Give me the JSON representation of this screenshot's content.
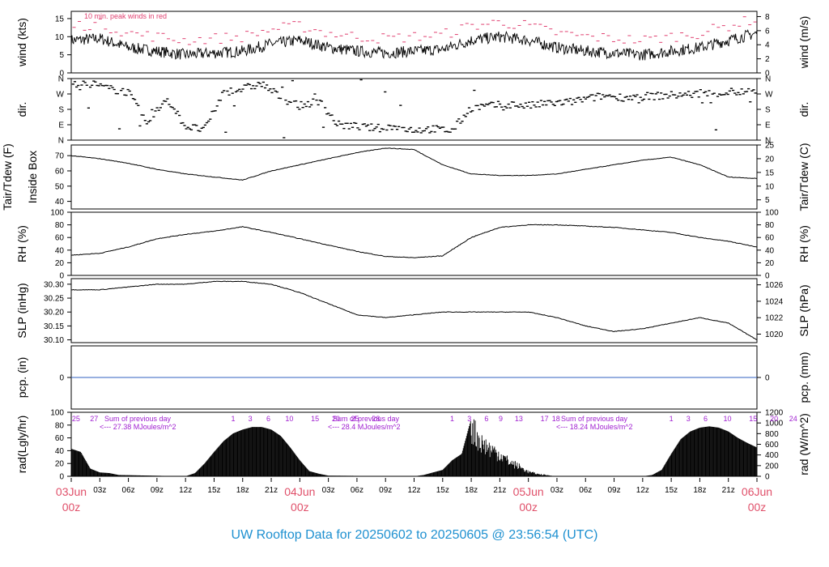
{
  "title": "UW Rooftop Data for 20250602  to  20250605 @ 23:56:54  (UTC)",
  "colors": {
    "title": "#1e90d0",
    "date_label": "#e0506a",
    "peak_wind": "#e04070",
    "annotation": "#a020d0",
    "pcp_line": "#3060c0",
    "trace": "#000000"
  },
  "x_axis": {
    "hour_ticks": [
      "03z",
      "06z",
      "09z",
      "12z",
      "15z",
      "18z",
      "21z",
      "03z",
      "06z",
      "09z",
      "12z",
      "15z",
      "18z",
      "21z",
      "03z",
      "06z",
      "09z",
      "12z",
      "15z",
      "18z",
      "21z"
    ],
    "day_ticks": [
      {
        "date": "03Jun",
        "time": "00z"
      },
      {
        "date": "04Jun",
        "time": "00z"
      },
      {
        "date": "05Jun",
        "time": "00z"
      },
      {
        "date": "06Jun",
        "time": "00z"
      }
    ]
  },
  "chart_data": [
    {
      "type": "line",
      "panel": "wind",
      "ylabel_left": "wind (kts)",
      "ylabel_right": "wind (m/s)",
      "left_ticks": [
        "0",
        "5",
        "10",
        "15"
      ],
      "right_ticks": [
        "0",
        "2",
        "4",
        "6",
        "8"
      ],
      "ylim": [
        0,
        17
      ],
      "legend_note": "10 min. peak winds in red",
      "series": [
        {
          "name": "wind",
          "x_hours": [
            0,
            3,
            6,
            9,
            12,
            15,
            18,
            21,
            24,
            27,
            30,
            33,
            36,
            39,
            42,
            45,
            48,
            51,
            54,
            57,
            60,
            63,
            66,
            69,
            72
          ],
          "values": [
            9,
            9.5,
            7,
            6,
            5,
            5.5,
            6,
            8,
            9,
            7,
            6,
            5.5,
            6,
            6.5,
            9,
            10,
            9,
            7,
            6,
            5.5,
            5,
            6,
            7,
            9,
            11
          ]
        },
        {
          "name": "10 min. peak winds",
          "x_hours": [
            0,
            3,
            6,
            9,
            12,
            15,
            18,
            21,
            24,
            27,
            30,
            33,
            36,
            39,
            42,
            45,
            48,
            51,
            54,
            57,
            60,
            63,
            66,
            69,
            72
          ],
          "values": [
            13,
            13.5,
            11,
            10,
            9,
            9.5,
            10,
            12,
            13,
            11,
            10,
            9.5,
            10,
            10.5,
            13,
            14,
            13,
            11,
            10,
            9.5,
            9,
            10,
            11,
            13,
            15
          ]
        }
      ]
    },
    {
      "type": "scatter",
      "panel": "dir",
      "ylabel_left": "dir.",
      "ylabel_right": "dir.",
      "left_ticks": [
        "N",
        "E",
        "S",
        "W",
        "N"
      ],
      "right_ticks": [
        "N",
        "E",
        "S",
        "W",
        "N"
      ],
      "ylim": [
        0,
        360
      ],
      "series": [
        {
          "name": "direction",
          "x_hours": [
            0,
            2,
            4,
            6,
            8,
            10,
            12,
            14,
            16,
            18,
            20,
            22,
            24,
            26,
            28,
            30,
            32,
            34,
            36,
            38,
            40,
            42,
            44,
            46,
            48,
            50,
            52,
            54,
            56,
            58,
            60,
            62,
            64,
            66,
            68,
            70,
            72
          ],
          "values": [
            320,
            330,
            300,
            280,
            90,
            250,
            80,
            60,
            280,
            300,
            330,
            250,
            200,
            230,
            90,
            80,
            70,
            75,
            60,
            65,
            55,
            190,
            200,
            210,
            200,
            215,
            220,
            240,
            260,
            250,
            255,
            260,
            265,
            270,
            275,
            280,
            285
          ]
        }
      ]
    },
    {
      "type": "line",
      "panel": "temp",
      "ylabel_left": "Tair/Tdew (F)",
      "ylabel_left2": "Inside Box",
      "ylabel_right": "Tair/Tdew (C)",
      "left_ticks": [
        "40",
        "50",
        "60",
        "70"
      ],
      "right_ticks": [
        "5",
        "10",
        "15",
        "20",
        "25"
      ],
      "ylim": [
        35,
        77
      ],
      "series": [
        {
          "name": "temperature",
          "x_hours": [
            0,
            3,
            6,
            9,
            12,
            15,
            18,
            21,
            24,
            27,
            30,
            33,
            36,
            39,
            42,
            45,
            48,
            51,
            54,
            57,
            60,
            63,
            66,
            69,
            72
          ],
          "values": [
            70,
            68,
            65,
            61,
            58,
            56,
            54,
            60,
            64,
            68,
            72,
            75,
            74,
            64,
            58,
            57,
            57,
            58,
            61,
            64,
            67,
            69,
            64,
            56,
            55
          ]
        }
      ]
    },
    {
      "type": "line",
      "panel": "rh",
      "ylabel_left": "RH (%)",
      "ylabel_right": "RH (%)",
      "left_ticks": [
        "0",
        "20",
        "40",
        "60",
        "80",
        "100"
      ],
      "right_ticks": [
        "0",
        "20",
        "40",
        "60",
        "80",
        "100"
      ],
      "ylim": [
        0,
        100
      ],
      "series": [
        {
          "name": "relative humidity",
          "x_hours": [
            0,
            3,
            6,
            9,
            12,
            15,
            18,
            21,
            24,
            27,
            30,
            33,
            36,
            39,
            42,
            45,
            48,
            51,
            54,
            57,
            60,
            63,
            66,
            69,
            72
          ],
          "values": [
            32,
            35,
            45,
            58,
            65,
            70,
            77,
            68,
            58,
            48,
            38,
            30,
            28,
            31,
            60,
            76,
            80,
            80,
            78,
            76,
            72,
            68,
            60,
            54,
            45
          ]
        }
      ]
    },
    {
      "type": "line",
      "panel": "slp",
      "ylabel_left": "SLP (inHg)",
      "ylabel_right": "SLP (hPa)",
      "left_ticks": [
        "30.10",
        "30.15",
        "30.20",
        "30.25",
        "30.30"
      ],
      "right_ticks": [
        "1020",
        "1022",
        "1024",
        "1026"
      ],
      "ylim": [
        30.09,
        30.32
      ],
      "series": [
        {
          "name": "sea level pressure",
          "x_hours": [
            0,
            3,
            6,
            9,
            12,
            15,
            18,
            21,
            24,
            27,
            30,
            33,
            36,
            39,
            42,
            45,
            48,
            51,
            54,
            57,
            60,
            63,
            66,
            69,
            72
          ],
          "values": [
            30.28,
            30.28,
            30.29,
            30.3,
            30.3,
            30.31,
            30.31,
            30.3,
            30.27,
            30.23,
            30.19,
            30.18,
            30.19,
            30.2,
            30.2,
            30.2,
            30.2,
            30.18,
            30.15,
            30.13,
            30.14,
            30.16,
            30.18,
            30.16,
            30.1
          ]
        }
      ]
    },
    {
      "type": "line",
      "panel": "pcp",
      "ylabel_left": "pcp. (in)",
      "ylabel_right": "pcp. (mm)",
      "left_ticks": [
        "0"
      ],
      "right_ticks": [
        "0"
      ],
      "ylim": [
        -1,
        1
      ],
      "series": [
        {
          "name": "precipitation",
          "x_hours": [
            0,
            72
          ],
          "values": [
            0,
            0
          ]
        }
      ]
    },
    {
      "type": "area",
      "panel": "rad",
      "ylabel_left": "rad(Lgly/hr)",
      "ylabel_right": "rad (W/m^2)",
      "left_ticks": [
        "0",
        "20",
        "40",
        "60",
        "80",
        "100"
      ],
      "right_ticks": [
        "0",
        "200",
        "400",
        "600",
        "800",
        "1000",
        "1200"
      ],
      "ylim": [
        0,
        100
      ],
      "annotations": [
        {
          "day_hour_labels": [
            "25",
            "27"
          ],
          "sum_label": "Sum of previous day",
          "sum_value": "<--- 27.38 MJoules/m^2"
        },
        {
          "day_hour_labels": [
            "1",
            "3",
            "6",
            "10",
            "15",
            "20",
            "25",
            "28"
          ],
          "sum_label": "Sum of previous day",
          "sum_value": "<--- 28.4 MJoules/m^2"
        },
        {
          "day_hour_labels": [
            "1",
            "3",
            "6",
            "9",
            "13",
            "17",
            "18"
          ],
          "sum_label": "Sum of previous day",
          "sum_value": "<--- 18.24 MJoules/m^2"
        },
        {
          "day_hour_labels": [
            "1",
            "3",
            "6",
            "10",
            "15",
            "20",
            "24"
          ],
          "sum_label": "",
          "sum_value": ""
        }
      ],
      "series": [
        {
          "name": "solar radiation",
          "x_hours": [
            0,
            1,
            2,
            3,
            4,
            5,
            12,
            13,
            14,
            15,
            16,
            17,
            18,
            19,
            20,
            21,
            22,
            23,
            24,
            25,
            26,
            27,
            36,
            37,
            38,
            39,
            40,
            41,
            42,
            43,
            44,
            45,
            46,
            47,
            48,
            49,
            50,
            51,
            60,
            61,
            62,
            63,
            64,
            65,
            66,
            67,
            68,
            69,
            70,
            71,
            72
          ],
          "values": [
            43,
            38,
            12,
            6,
            5,
            2,
            0,
            5,
            20,
            38,
            55,
            67,
            73,
            77,
            77,
            73,
            63,
            45,
            25,
            8,
            4,
            1,
            0,
            2,
            6,
            10,
            25,
            35,
            90,
            62,
            50,
            40,
            26,
            18,
            8,
            4,
            2,
            0,
            0,
            2,
            10,
            35,
            58,
            70,
            76,
            78,
            76,
            70,
            60,
            52,
            45
          ]
        }
      ]
    }
  ]
}
